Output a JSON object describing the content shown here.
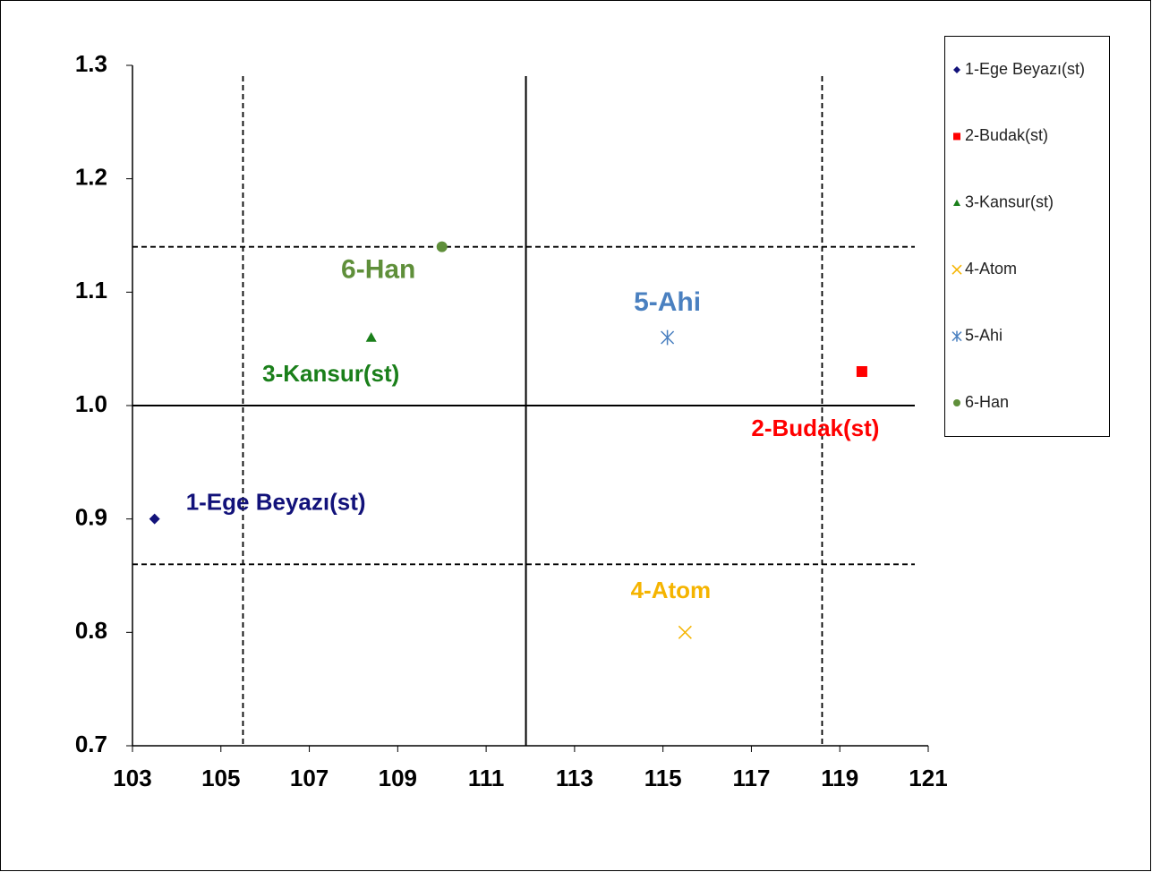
{
  "chart_data": {
    "type": "scatter",
    "xlim": [
      103,
      121
    ],
    "xticks": [
      103,
      105,
      107,
      109,
      111,
      113,
      115,
      117,
      119,
      121
    ],
    "ylim": [
      0.7,
      1.3
    ],
    "yticks": [
      0.7,
      0.8,
      0.9,
      {
        "value": 1,
        "label": "1.0"
      },
      1.1,
      1.2,
      1.3
    ],
    "legend": "right",
    "series": [
      {
        "name": "1-Ege Beyazı(st)",
        "color": "#12127a",
        "marker": "diamond",
        "x": [
          103.5
        ],
        "values": [
          0.9
        ]
      },
      {
        "name": "2-Budak(st)",
        "color": "#ff0000",
        "marker": "square",
        "x": [
          119.5
        ],
        "values": [
          1.03
        ]
      },
      {
        "name": "3-Kansur(st)",
        "color": "#1a7f1a",
        "marker": "triangle",
        "x": [
          108.4
        ],
        "values": [
          1.06
        ]
      },
      {
        "name": "4-Atom",
        "color": "#f5b400",
        "marker": "x",
        "x": [
          115.5
        ],
        "values": [
          0.8
        ]
      },
      {
        "name": "5-Ahi",
        "color": "#4a80c0",
        "marker": "asterisk",
        "x": [
          115.1
        ],
        "values": [
          1.06
        ]
      },
      {
        "name": "6-Han",
        "color": "#5f8f3a",
        "marker": "circle",
        "x": [
          110.0
        ],
        "values": [
          1.14
        ]
      }
    ],
    "vlines": [
      {
        "x": 105.5,
        "style": "dashed"
      },
      {
        "x": 111.9,
        "style": "solid"
      },
      {
        "x": 118.6,
        "style": "dashed"
      }
    ],
    "hlines": [
      {
        "y": 1.14,
        "style": "dashed"
      },
      {
        "y": 1.0,
        "style": "solid"
      },
      {
        "y": 0.86,
        "style": "dashed"
      }
    ]
  }
}
